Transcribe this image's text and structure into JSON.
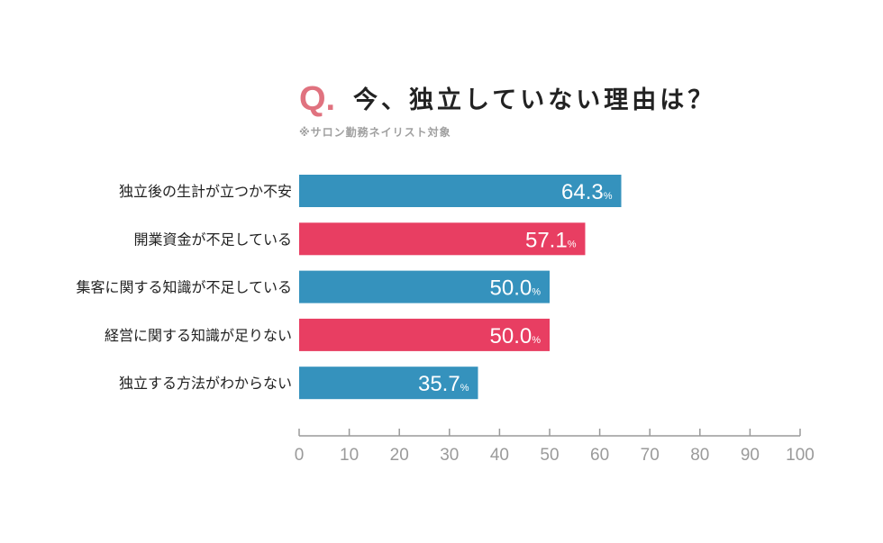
{
  "header": {
    "q_mark": "Q.",
    "title": "今、独立していない理由は？",
    "note": "※サロン勤務ネイリスト対象"
  },
  "colors": {
    "accent": "#e0727f",
    "blue": "#3592bd",
    "pink": "#e83e62",
    "axis": "#9a9a9a",
    "label": "#222222"
  },
  "chart_data": {
    "type": "bar",
    "orientation": "horizontal",
    "categories": [
      "独立後の生計が立つか不安",
      "開業資金が不足している",
      "集客に関する知識が不足している",
      "経営に関する知識が足りない",
      "独立する方法がわからない"
    ],
    "values": [
      64.3,
      57.1,
      50.0,
      50.0,
      35.7
    ],
    "value_labels": [
      "64.3",
      "57.1",
      "50.0",
      "50.0",
      "35.7"
    ],
    "unit": "%",
    "bar_colors": [
      "#3592bd",
      "#e83e62",
      "#3592bd",
      "#e83e62",
      "#3592bd"
    ],
    "xlim": [
      0,
      100
    ],
    "x_ticks": [
      0,
      10,
      20,
      30,
      40,
      50,
      60,
      70,
      80,
      90,
      100
    ],
    "grid": false,
    "legend": "none"
  }
}
